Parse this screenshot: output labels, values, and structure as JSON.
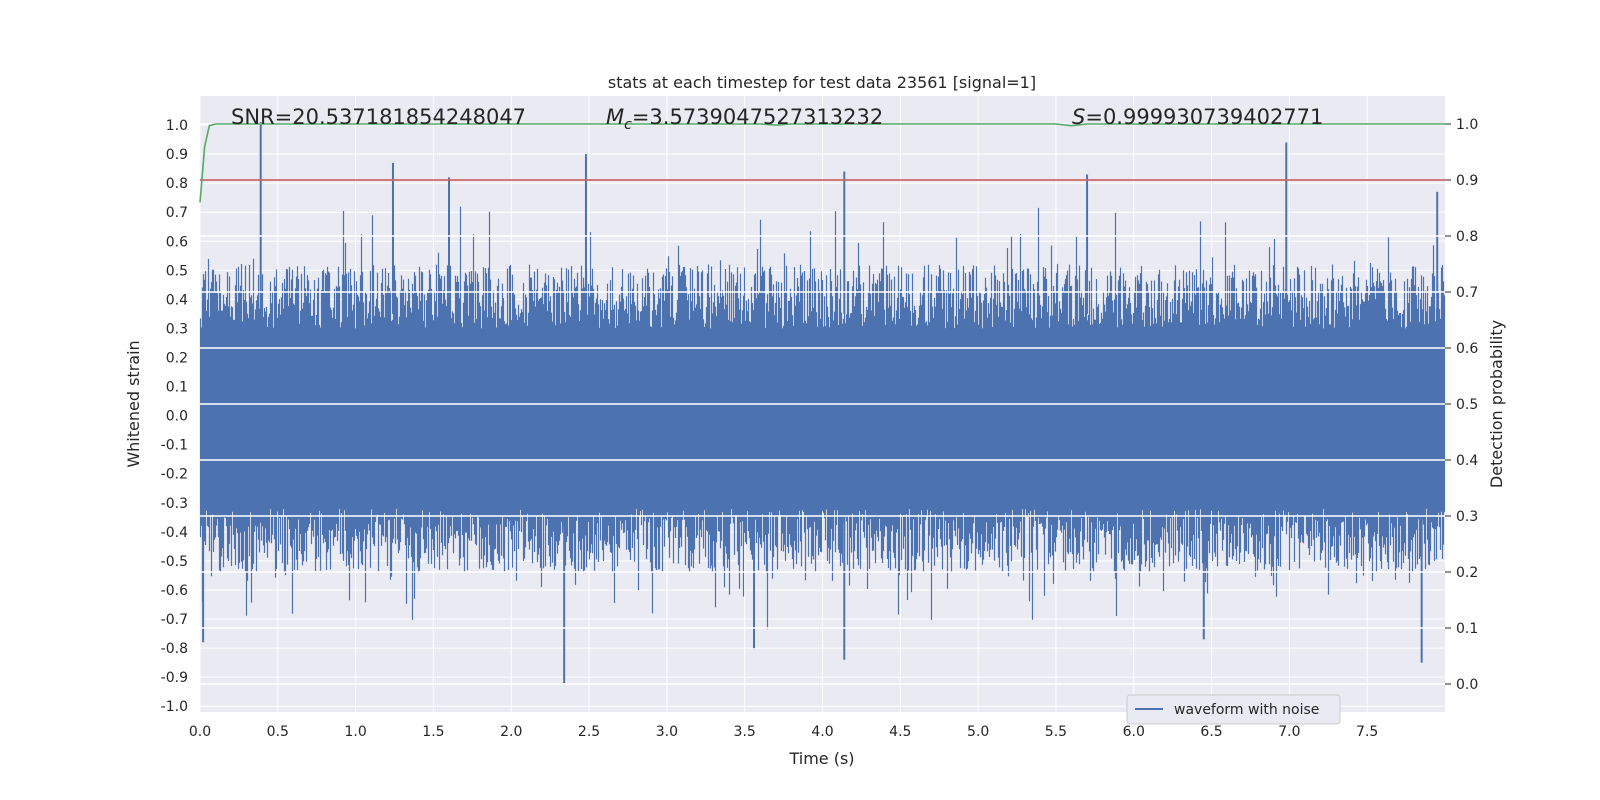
{
  "chart_data": {
    "type": "line",
    "title": "stats at each timestep for test data 23561 [signal=1]",
    "xlabel": "Time (s)",
    "ylabel": "Whitened strain",
    "y2label": "Detection probability",
    "xlim": [
      0.0,
      8.0
    ],
    "ylim": [
      -1.02,
      1.1
    ],
    "y2lim": [
      -0.05,
      1.05
    ],
    "xticks": [
      "0.0",
      "0.5",
      "1.0",
      "1.5",
      "2.0",
      "2.5",
      "3.0",
      "3.5",
      "4.0",
      "4.5",
      "5.0",
      "5.5",
      "6.0",
      "6.5",
      "7.0",
      "7.5"
    ],
    "yticks": [
      "-1.0",
      "-0.9",
      "-0.8",
      "-0.7",
      "-0.6",
      "-0.5",
      "-0.4",
      "-0.3",
      "-0.2",
      "-0.1",
      "0.0",
      "0.1",
      "0.2",
      "0.3",
      "0.4",
      "0.5",
      "0.6",
      "0.7",
      "0.8",
      "0.9",
      "1.0"
    ],
    "y2ticks": [
      "0.0",
      "0.1",
      "0.2",
      "0.3",
      "0.4",
      "0.5",
      "0.6",
      "0.7",
      "0.8",
      "0.9",
      "1.0"
    ],
    "grid": true,
    "legend": {
      "placement": "lower-right",
      "entries": [
        "waveform with noise"
      ]
    },
    "annotations": {
      "snr": "SNR=20.537181854248047",
      "mc_symbol": "M",
      "mc_subscript": "c",
      "mc_value": "=3.5739047527313232",
      "s_symbol": "S",
      "s_value": "=0.999930739402771"
    },
    "series": [
      {
        "name": "waveform with noise",
        "axis": "left",
        "color": "#4c72b0",
        "envelope_note_values": {
          "typical_upper": [
            0.3,
            0.5
          ],
          "typical_lower": [
            -0.3,
            -0.55
          ],
          "peaks": [
            {
              "x": 0.39,
              "y": 1.01
            },
            {
              "x": 1.24,
              "y": 0.87
            },
            {
              "x": 1.6,
              "y": 0.82
            },
            {
              "x": 2.48,
              "y": 0.9
            },
            {
              "x": 4.14,
              "y": 0.84
            },
            {
              "x": 5.7,
              "y": 0.83
            },
            {
              "x": 6.98,
              "y": 0.94
            },
            {
              "x": 7.95,
              "y": 0.77
            }
          ],
          "troughs": [
            {
              "x": 0.02,
              "y": -0.78
            },
            {
              "x": 2.34,
              "y": -0.92
            },
            {
              "x": 3.56,
              "y": -0.8
            },
            {
              "x": 4.14,
              "y": -0.84
            },
            {
              "x": 6.45,
              "y": -0.77
            },
            {
              "x": 7.85,
              "y": -0.85
            }
          ]
        }
      },
      {
        "name": "detection probability",
        "axis": "right",
        "color": "#55a868",
        "x": [
          0.0,
          0.03,
          0.06,
          0.1,
          3.6,
          3.7,
          3.8,
          5.5,
          5.6,
          5.7,
          8.0
        ],
        "values": [
          0.86,
          0.96,
          0.997,
          1.0,
          1.0,
          0.998,
          1.0,
          1.0,
          0.997,
          1.0,
          1.0
        ]
      },
      {
        "name": "threshold",
        "axis": "right",
        "color": "#c44e52",
        "x": [
          0.0,
          8.0
        ],
        "values": [
          0.9,
          0.9
        ]
      }
    ]
  }
}
